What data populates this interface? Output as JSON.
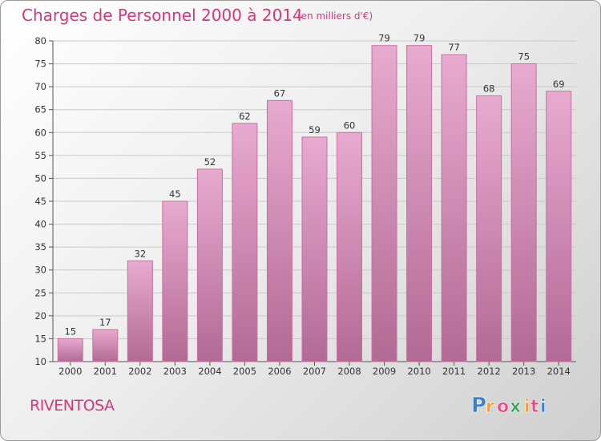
{
  "title": "Charges de Personnel 2000 à 2014",
  "subtitle": "(en milliers d'€)",
  "town": "RIVENTOSA",
  "logo": {
    "text": "Proxiti",
    "letters": [
      "P",
      "r",
      "o",
      "x",
      "i",
      "t",
      "i"
    ]
  },
  "colors": {
    "title": "#d4387a",
    "bar_top": "#e8aad0",
    "bar_bottom": "#b26a94",
    "bar_stroke": "#c8709f",
    "grid": "#c9c9c9",
    "logo_letters": [
      "#3a7fc8",
      "#f0a030",
      "#e84a8a",
      "#3aa55a",
      "#f0a030",
      "#e84a8a",
      "#3a7fc8"
    ]
  },
  "chart_data": {
    "type": "bar",
    "categories": [
      "2000",
      "2001",
      "2002",
      "2003",
      "2004",
      "2005",
      "2006",
      "2007",
      "2008",
      "2009",
      "2010",
      "2011",
      "2012",
      "2013",
      "2014"
    ],
    "values": [
      15,
      17,
      32,
      45,
      52,
      62,
      67,
      59,
      60,
      79,
      79,
      77,
      68,
      75,
      69
    ],
    "title": "Charges de Personnel 2000 à 2014",
    "ylim": [
      10,
      80
    ],
    "yticks": [
      10,
      15,
      20,
      25,
      30,
      35,
      40,
      45,
      50,
      55,
      60,
      65,
      70,
      75,
      80
    ],
    "grid": true,
    "data_labels": true
  }
}
